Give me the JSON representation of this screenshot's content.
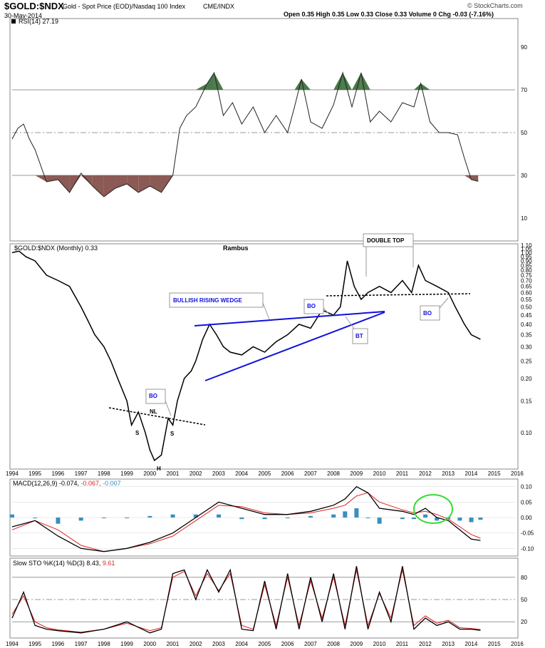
{
  "header": {
    "symbol": "$GOLD:$NDX",
    "description": "Gold - Spot Price (EOD)/Nasdaq 100 Index",
    "exchange": "CME/INDX",
    "date": "30-May-2014",
    "stats": "Open 0.35  High 0.35  Low 0.33  Close 0.33  Volume 0  Chg -0.03 (-7.16%)",
    "brand": "© StockCharts.com"
  },
  "colors": {
    "price_line": "#000000",
    "wedge": "#1010dd",
    "rsi_overbought_fill": "#4a7a4a",
    "rsi_oversold_fill": "#8b5a55",
    "macd_hist": "#3a8fbf",
    "signal": "#e02020",
    "circle": "#33dd33",
    "grid": "#999999"
  },
  "chart_data": [
    {
      "id": "rsi",
      "type": "line",
      "title": "RSI(14) 27.19",
      "ylim": [
        0,
        100
      ],
      "yticks": [
        10,
        30,
        50,
        70,
        90
      ],
      "levels": [
        30,
        50,
        70
      ],
      "x": [
        1994.0,
        1994.25,
        1994.5,
        1994.75,
        1995.0,
        1995.5,
        1996.0,
        1996.5,
        1997.0,
        1997.5,
        1998.0,
        1998.5,
        1999.0,
        1999.5,
        2000.0,
        2000.5,
        2001.0,
        2001.3,
        2001.6,
        2002.0,
        2002.5,
        2002.8,
        2003.2,
        2003.6,
        2004.0,
        2004.5,
        2005.0,
        2005.5,
        2006.0,
        2006.3,
        2006.6,
        2007.0,
        2007.5,
        2008.0,
        2008.4,
        2008.8,
        2009.2,
        2009.6,
        2010.0,
        2010.5,
        2011.0,
        2011.5,
        2011.8,
        2012.2,
        2012.6,
        2013.0,
        2013.4,
        2013.7,
        2014.0,
        2014.3
      ],
      "values": [
        47,
        52,
        54,
        47,
        42,
        27,
        28,
        22,
        31,
        25,
        20,
        24,
        26,
        22,
        25,
        22,
        30,
        52,
        58,
        62,
        73,
        78,
        58,
        64,
        54,
        62,
        50,
        58,
        50,
        62,
        75,
        55,
        52,
        63,
        78,
        62,
        78,
        55,
        60,
        55,
        64,
        62,
        73,
        55,
        50,
        50,
        49,
        38,
        28,
        27.19
      ]
    },
    {
      "id": "price",
      "type": "line",
      "title": "$GOLD:$NDX (Monthly) 0.33",
      "annotation_title": "Rambus",
      "scale": "log",
      "ylim": [
        0.065,
        1.1
      ],
      "yticks": [
        0.1,
        0.15,
        0.2,
        0.25,
        0.3,
        0.35,
        0.4,
        0.45,
        0.5,
        0.55,
        0.6,
        0.65,
        0.7,
        0.75,
        0.8,
        0.85,
        0.9,
        0.95,
        1.0,
        1.05,
        1.1
      ],
      "ytick_labels": [
        "0.10",
        "0.15",
        "0.20",
        "0.25",
        "0.30",
        "0.35",
        "0.40",
        "0.45",
        "0.50",
        "0.55",
        "0.60",
        "0.65",
        "0.70",
        "0.75",
        "0.80",
        "0.85",
        "0.90",
        "0.95",
        "1.00",
        "1.05",
        "1.10"
      ],
      "x": [
        1994.0,
        1994.3,
        1994.6,
        1995.0,
        1995.5,
        1996.0,
        1996.5,
        1997.0,
        1997.3,
        1997.6,
        1998.0,
        1998.3,
        1998.6,
        1999.0,
        1999.2,
        1999.5,
        1999.8,
        2000.0,
        2000.2,
        2000.5,
        2000.8,
        2001.0,
        2001.2,
        2001.5,
        2001.8,
        2002.0,
        2002.3,
        2002.6,
        2002.9,
        2003.2,
        2003.5,
        2004.0,
        2004.5,
        2005.0,
        2005.5,
        2006.0,
        2006.5,
        2007.0,
        2007.5,
        2008.0,
        2008.3,
        2008.6,
        2008.9,
        2009.2,
        2009.5,
        2010.0,
        2010.5,
        2011.0,
        2011.4,
        2011.7,
        2012.0,
        2012.5,
        2013.0,
        2013.3,
        2013.7,
        2014.0,
        2014.4
      ],
      "values": [
        1.0,
        1.02,
        0.95,
        0.9,
        0.75,
        0.7,
        0.65,
        0.5,
        0.42,
        0.35,
        0.3,
        0.25,
        0.2,
        0.15,
        0.11,
        0.13,
        0.1,
        0.08,
        0.07,
        0.075,
        0.12,
        0.11,
        0.15,
        0.2,
        0.22,
        0.25,
        0.33,
        0.4,
        0.35,
        0.3,
        0.28,
        0.27,
        0.3,
        0.28,
        0.32,
        0.35,
        0.4,
        0.38,
        0.48,
        0.45,
        0.5,
        0.9,
        0.65,
        0.55,
        0.6,
        0.65,
        0.6,
        0.7,
        0.6,
        0.85,
        0.7,
        0.65,
        0.6,
        0.5,
        0.4,
        0.35,
        0.33
      ]
    },
    {
      "id": "macd",
      "type": "line",
      "title_main": "MACD(12,26,9) -0.074,",
      "title_signal": " -0.067,",
      "title_hist": " -0.007",
      "ylim": [
        -0.12,
        0.12
      ],
      "yticks": [
        -0.1,
        -0.05,
        0.0,
        0.05,
        0.1
      ],
      "ytick_labels": [
        "-0.10",
        "-0.05",
        "0.00",
        "0.05",
        "0.10"
      ],
      "x": [
        1994.0,
        1995.0,
        1996.0,
        1997.0,
        1998.0,
        1999.0,
        2000.0,
        2001.0,
        2002.0,
        2003.0,
        2004.0,
        2005.0,
        2006.0,
        2007.0,
        2008.0,
        2008.5,
        2009.0,
        2009.5,
        2010.0,
        2011.0,
        2011.5,
        2012.0,
        2012.5,
        2013.0,
        2013.5,
        2014.0,
        2014.4
      ],
      "values": [
        -0.03,
        -0.01,
        -0.06,
        -0.1,
        -0.11,
        -0.1,
        -0.08,
        -0.05,
        0.0,
        0.05,
        0.03,
        0.01,
        0.01,
        0.02,
        0.04,
        0.06,
        0.1,
        0.08,
        0.03,
        0.02,
        0.01,
        0.03,
        0.0,
        -0.01,
        -0.04,
        -0.07,
        -0.074
      ],
      "signal": [
        -0.04,
        -0.01,
        -0.04,
        -0.09,
        -0.11,
        -0.1,
        -0.085,
        -0.06,
        -0.01,
        0.04,
        0.035,
        0.015,
        0.01,
        0.015,
        0.03,
        0.04,
        0.07,
        0.08,
        0.05,
        0.025,
        0.015,
        0.02,
        0.01,
        -0.005,
        -0.03,
        -0.055,
        -0.067
      ],
      "hist": [
        0.01,
        0.0,
        -0.02,
        -0.01,
        0.0,
        0.0,
        0.005,
        0.01,
        0.01,
        0.01,
        -0.005,
        -0.005,
        0.0,
        0.005,
        0.01,
        0.02,
        0.03,
        0.0,
        -0.02,
        -0.005,
        -0.005,
        0.01,
        -0.01,
        -0.005,
        -0.01,
        -0.015,
        -0.007
      ]
    },
    {
      "id": "sto",
      "type": "line",
      "title_main": "Slow STO %K(14) %D(3) 8.43,",
      "title_d": " 9.61",
      "ylim": [
        0,
        100
      ],
      "yticks": [
        20,
        50,
        80
      ],
      "levels": [
        20,
        50,
        80
      ],
      "x": [
        1994.0,
        1994.5,
        1995.0,
        1995.5,
        1996.0,
        1997.0,
        1998.0,
        1999.0,
        2000.0,
        2000.5,
        2001.0,
        2001.5,
        2002.0,
        2002.5,
        2003.0,
        2003.5,
        2004.0,
        2004.5,
        2005.0,
        2005.5,
        2006.0,
        2006.5,
        2007.0,
        2007.5,
        2008.0,
        2008.5,
        2009.0,
        2009.5,
        2010.0,
        2010.5,
        2011.0,
        2011.5,
        2012.0,
        2012.5,
        2013.0,
        2013.5,
        2014.0,
        2014.4
      ],
      "values": [
        25,
        60,
        15,
        10,
        8,
        5,
        10,
        20,
        5,
        10,
        85,
        90,
        50,
        90,
        60,
        90,
        10,
        8,
        75,
        10,
        85,
        10,
        80,
        20,
        85,
        10,
        95,
        10,
        60,
        20,
        95,
        10,
        25,
        15,
        20,
        10,
        10,
        8.43
      ],
      "d": [
        30,
        55,
        20,
        12,
        9,
        6,
        10,
        18,
        8,
        12,
        80,
        88,
        55,
        85,
        62,
        85,
        15,
        10,
        70,
        15,
        80,
        15,
        75,
        25,
        80,
        15,
        90,
        15,
        58,
        25,
        90,
        15,
        28,
        18,
        22,
        12,
        11,
        9.61
      ]
    }
  ],
  "x_axis": {
    "years": [
      "1994",
      "1995",
      "1996",
      "1997",
      "1998",
      "1999",
      "2000",
      "2001",
      "2002",
      "2003",
      "2004",
      "2005",
      "2006",
      "2007",
      "2008",
      "2009",
      "2010",
      "2011",
      "2012",
      "2013",
      "2014",
      "2015",
      "2016"
    ]
  },
  "annotations": {
    "bo": "BO",
    "nl": "NL",
    "s": "S",
    "h": "H",
    "bt": "BT",
    "wedge": "BULLISH RISING WEDGE",
    "double_top": "DOUBLE TOP"
  }
}
